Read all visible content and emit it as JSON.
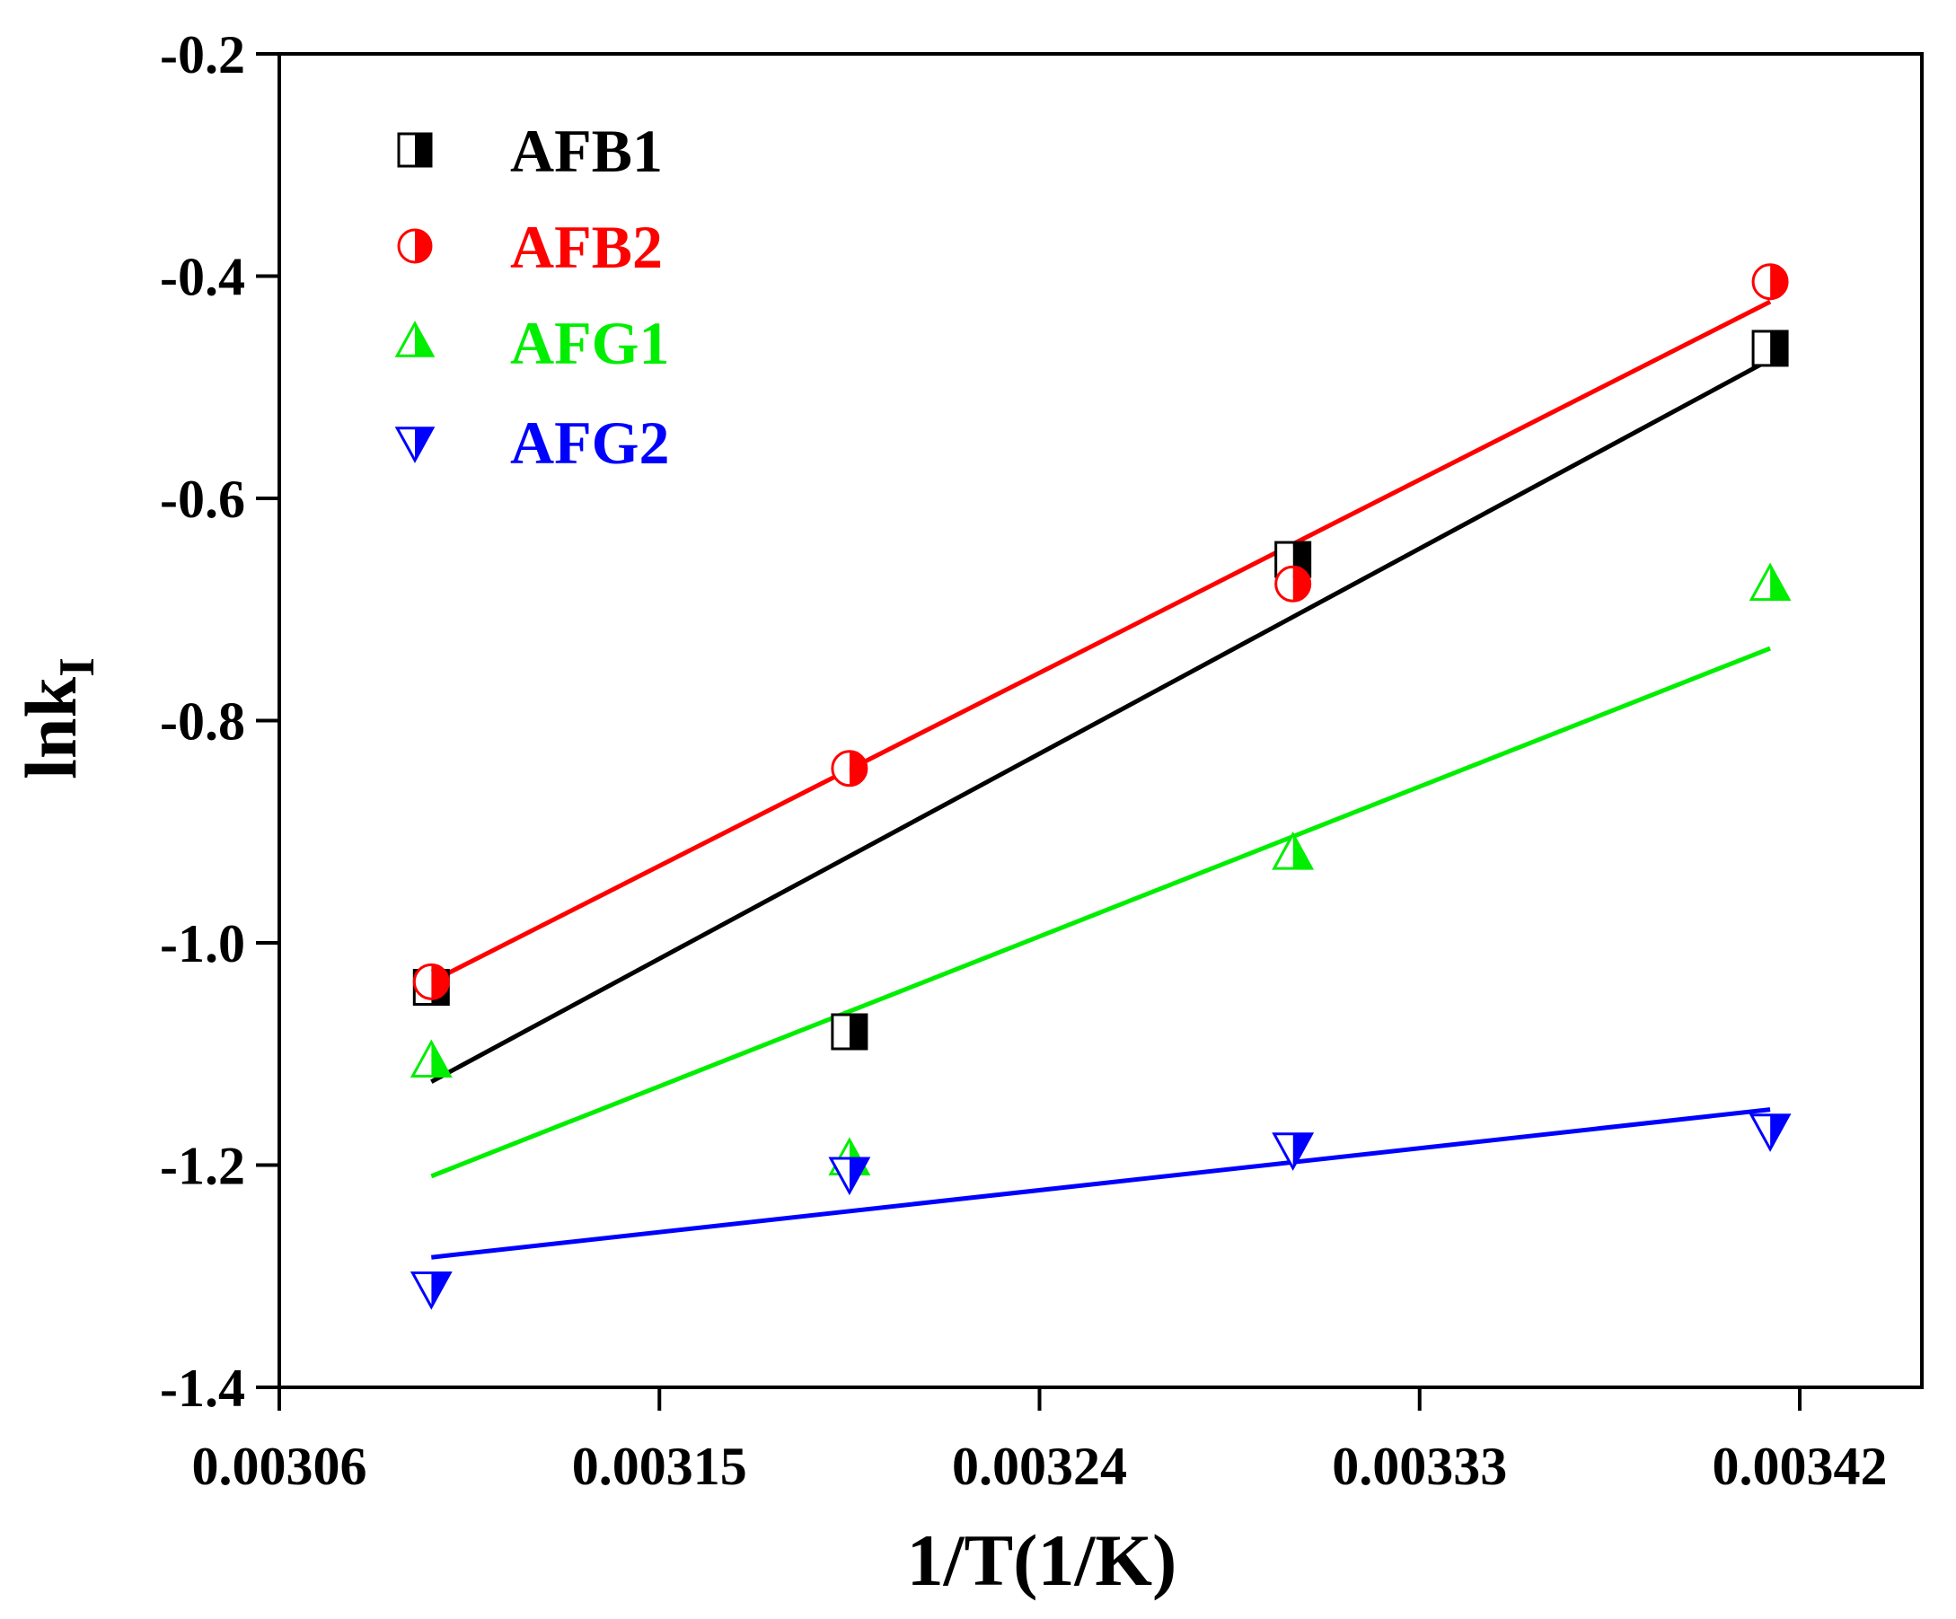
{
  "chart_data": {
    "type": "scatter",
    "title": "",
    "xlabel": "1/T(1/K)",
    "ylabel_main": "lnk",
    "ylabel_sub": "I",
    "xlim": [
      0.00306,
      0.003465
    ],
    "ylim": [
      -1.4,
      -0.2
    ],
    "xticks": [
      0.00306,
      0.00315,
      0.00324,
      0.00333,
      0.00342
    ],
    "xtick_labels": [
      "0.00306",
      "0.00315",
      "0.00324",
      "0.00333",
      "0.00342"
    ],
    "yticks": [
      -1.4,
      -1.2,
      -1.0,
      -0.8,
      -0.6,
      -0.4,
      -0.2
    ],
    "ytick_labels": [
      "-1.4",
      "-1.2",
      "-1.0",
      "-0.8",
      "-0.6",
      "-0.4",
      "-0.2"
    ],
    "legend_position": "top-left",
    "x": [
      0.003096,
      0.003195,
      0.0033,
      0.003413
    ],
    "series": [
      {
        "name": "AFB1",
        "color": "#000000",
        "marker": "square-half",
        "values": [
          -1.04,
          -1.08,
          -0.655,
          -0.465
        ],
        "fit": [
          [
            0.003096,
            -1.125
          ],
          [
            0.003413,
            -0.475
          ]
        ]
      },
      {
        "name": "AFB2",
        "color": "#ff0000",
        "marker": "circle-half",
        "values": [
          -1.035,
          -0.843,
          -0.677,
          -0.405
        ],
        "fit": [
          [
            0.003096,
            -1.035
          ],
          [
            0.003413,
            -0.423
          ]
        ]
      },
      {
        "name": "AFG1",
        "color": "#00ee00",
        "marker": "triangle-up-half",
        "values": [
          -1.107,
          -1.195,
          -0.92,
          -0.678
        ],
        "fit": [
          [
            0.003096,
            -1.21
          ],
          [
            0.003413,
            -0.735
          ]
        ]
      },
      {
        "name": "AFG2",
        "color": "#0000ff",
        "marker": "triangle-down-half",
        "values": [
          -1.31,
          -1.207,
          -1.185,
          -1.168
        ],
        "fit": [
          [
            0.003096,
            -1.283
          ],
          [
            0.003413,
            -1.15
          ]
        ]
      }
    ]
  }
}
